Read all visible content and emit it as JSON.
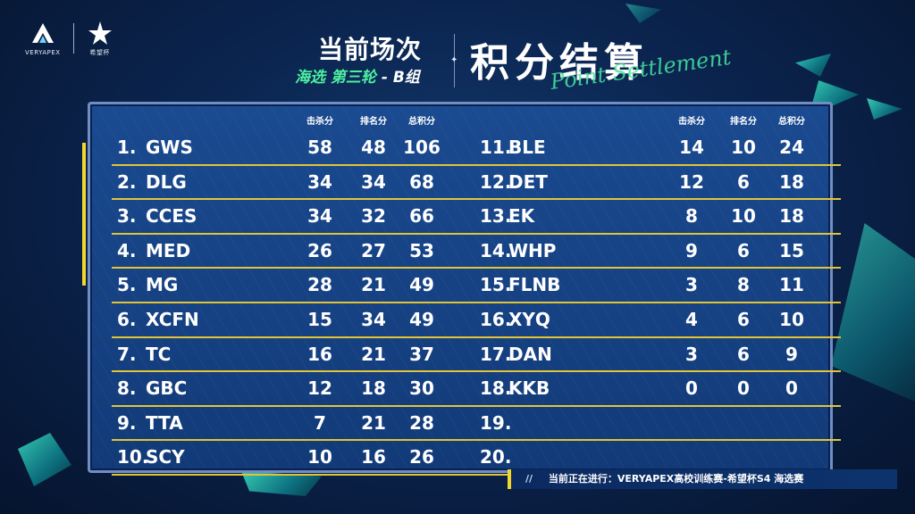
{
  "brand": {
    "logo1_label": "VERYAPEX",
    "logo2_label": "希望杯"
  },
  "header": {
    "round_title": "当前场次",
    "round_sub": "海选 第三轮",
    "round_group": "- B组",
    "main_title": "积分结算",
    "subtitle_en": "Point Settlement"
  },
  "columns": {
    "kills": "击杀分",
    "placement": "排名分",
    "total": "总积分"
  },
  "standings_left": [
    {
      "rank": "1.",
      "team": "GWS",
      "kills": "58",
      "placement": "48",
      "total": "106"
    },
    {
      "rank": "2.",
      "team": "DLG",
      "kills": "34",
      "placement": "34",
      "total": "68"
    },
    {
      "rank": "3.",
      "team": "CCES",
      "kills": "34",
      "placement": "32",
      "total": "66"
    },
    {
      "rank": "4.",
      "team": "MED",
      "kills": "26",
      "placement": "27",
      "total": "53"
    },
    {
      "rank": "5.",
      "team": "MG",
      "kills": "28",
      "placement": "21",
      "total": "49"
    },
    {
      "rank": "6.",
      "team": "XCFN",
      "kills": "15",
      "placement": "34",
      "total": "49"
    },
    {
      "rank": "7.",
      "team": "TC",
      "kills": "16",
      "placement": "21",
      "total": "37"
    },
    {
      "rank": "8.",
      "team": "GBC",
      "kills": "12",
      "placement": "18",
      "total": "30"
    },
    {
      "rank": "9.",
      "team": "TTA",
      "kills": "7",
      "placement": "21",
      "total": "28"
    },
    {
      "rank": "10.",
      "team": "SCY",
      "kills": "10",
      "placement": "16",
      "total": "26"
    }
  ],
  "standings_right": [
    {
      "rank": "11.",
      "team": "BLE",
      "kills": "14",
      "placement": "10",
      "total": "24"
    },
    {
      "rank": "12.",
      "team": "DET",
      "kills": "12",
      "placement": "6",
      "total": "18"
    },
    {
      "rank": "13.",
      "team": "EK",
      "kills": "8",
      "placement": "10",
      "total": "18"
    },
    {
      "rank": "14.",
      "team": "WHP",
      "kills": "9",
      "placement": "6",
      "total": "15"
    },
    {
      "rank": "15.",
      "team": "FLNB",
      "kills": "3",
      "placement": "8",
      "total": "11"
    },
    {
      "rank": "16.",
      "team": "XYQ",
      "kills": "4",
      "placement": "6",
      "total": "10"
    },
    {
      "rank": "17.",
      "team": "DAN",
      "kills": "3",
      "placement": "6",
      "total": "9"
    },
    {
      "rank": "18.",
      "team": "KKB",
      "kills": "0",
      "placement": "0",
      "total": "0"
    },
    {
      "rank": "19.",
      "team": "",
      "kills": "",
      "placement": "",
      "total": ""
    },
    {
      "rank": "20.",
      "team": "",
      "kills": "",
      "placement": "",
      "total": ""
    }
  ],
  "ticker": {
    "prefix": "//",
    "text": "当前正在进行：VERYAPEX高校训练赛-希望杯S4  海选赛"
  },
  "colors": {
    "accent_yellow": "#f0d82c",
    "accent_green": "#4df0a0",
    "board_blue": "#1a4a90"
  }
}
